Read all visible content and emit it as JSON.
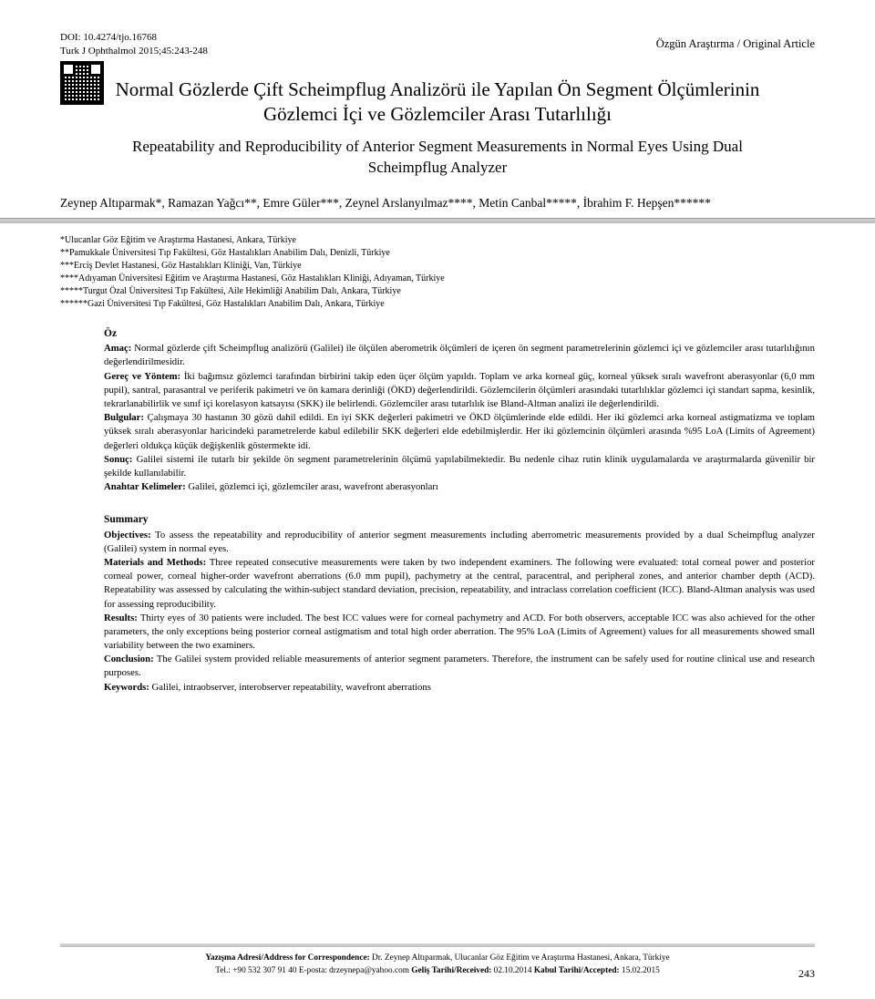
{
  "header": {
    "doi": "DOI: 10.4274/tjo.16768",
    "journal_ref": "Turk J Ophthalmol 2015;45:243-248",
    "article_type": "Özgün Araştırma / Original Article"
  },
  "title": {
    "tr": "Normal Gözlerde Çift Scheimpflug Analizörü ile Yapılan Ön Segment Ölçümlerinin Gözlemci İçi ve Gözlemciler Arası Tutarlılığı",
    "en": "Repeatability and Reproducibility of Anterior Segment Measurements in Normal Eyes Using Dual Scheimpflug Analyzer"
  },
  "authors": "Zeynep Altıparmak*, Ramazan Yağcı**, Emre Güler***, Zeynel Arslanyılmaz****, Metin Canbal*****, İbrahim F. Hepşen******",
  "affiliations": [
    "*Ulucanlar Göz Eğitim ve Araştırma Hastanesi, Ankara, Türkiye",
    "**Pamukkale Üniversitesi Tıp Fakültesi, Göz Hastalıkları Anabilim Dalı, Denizli, Türkiye",
    "***Erciş Devlet Hastanesi, Göz Hastalıkları Kliniği, Van, Türkiye",
    "****Adıyaman Üniversitesi Eğitim ve Araştırma Hastanesi, Göz Hastalıkları Kliniği, Adıyaman, Türkiye",
    "*****Turgut Özal Üniversitesi Tıp Fakültesi, Aile Hekimliği Anabilim Dalı, Ankara, Türkiye",
    "******Gazi Üniversitesi Tıp Fakültesi, Göz Hastalıkları Anabilim Dalı, Ankara, Türkiye"
  ],
  "oz": {
    "heading": "Öz",
    "amac_label": "Amaç:",
    "amac": " Normal gözlerde çift Scheimpflug analizörü (Galilei) ile ölçülen aberometrik ölçümleri de içeren ön segment parametrelerinin gözlemci içi ve gözlemciler arası tutarlılığının değerlendirilmesidir.",
    "gerec_label": "Gereç ve Yöntem:",
    "gerec": " İki bağımsız gözlemci tarafından birbirini takip eden üçer ölçüm yapıldı. Toplam ve arka korneal güç, korneal yüksek sıralı wavefront aberasyonlar (6,0 mm pupil), santral, parasantral ve periferik pakimetri ve ön kamara derinliği (ÖKD) değerlendirildi. Gözlemcilerin ölçümleri arasındaki tutarlılıklar gözlemci içi standart sapma, kesinlik, tekrarlanabilirlik ve sınıf içi korelasyon katsayısı (SKK) ile belirlendi. Gözlemciler arası tutarlılık ise Bland-Altman analizi ile değerlendirildi.",
    "bulgular_label": "Bulgular:",
    "bulgular": " Çalışmaya 30 hastanın 30 gözü dahil edildi. En iyi SKK değerleri pakimetri ve ÖKD ölçümlerinde elde edildi. Her iki gözlemci arka korneal astigmatizma ve toplam yüksek sıralı aberasyonlar haricindeki parametrelerde kabul edilebilir SKK değerleri elde edebilmişlerdir. Her iki gözlemcinin ölçümleri arasında %95 LoA (Limits of Agreement) değerleri oldukça küçük değişkenlik göstermekte idi.",
    "sonuc_label": "Sonuç:",
    "sonuc": " Galilei sistemi ile tutarlı bir şekilde ön segment parametrelerinin ölçümü yapılabilmektedir. Bu nedenle cihaz rutin klinik uygulamalarda ve araştırmalarda güvenilir bir şekilde kullanılabilir.",
    "keywords_label": "Anahtar Kelimeler:",
    "keywords": " Galilei, gözlemci içi, gözlemciler arası, wavefront aberasyonları"
  },
  "summary": {
    "heading": "Summary",
    "obj_label": "Objectives:",
    "obj": " To assess the repeatability and reproducibility of anterior segment measurements including aberrometric measurements provided by a dual Scheimpflug analyzer (Galilei) system in normal eyes.",
    "mm_label": "Materials and Methods:",
    "mm": " Three repeated consecutive measurements were taken by two independent examiners. The following were evaluated: total corneal power and posterior corneal power, corneal higher-order wavefront aberrations (6.0 mm pupil), pachymetry at the central, paracentral, and peripheral zones, and anterior chamber depth (ACD). Repeatability was assessed by calculating the within-subject standard deviation, precision, repeatability, and intraclass correlation coefficient (ICC). Bland-Altman analysis was used for assessing reproducibility.",
    "res_label": "Results:",
    "res": " Thirty eyes of 30 patients were included. The best ICC values were for corneal pachymetry and ACD. For both observers, acceptable ICC was also achieved for the other parameters, the only exceptions being posterior corneal astigmatism and total high order aberration. The 95% LoA (Limits of Agreement) values for all measurements showed small variability between the two examiners.",
    "con_label": "Conclusion:",
    "con": " The Galilei system provided reliable measurements of anterior segment parameters. Therefore, the instrument can be safely used for routine clinical use and research purposes.",
    "kw_label": "Keywords:",
    "kw": " Galilei, intraobserver, interobserver repeatability, wavefront aberrations"
  },
  "correspondence": {
    "label1": "Yazışma Adresi/Address for Correspondence:",
    "line1": " Dr. Zeynep Altıparmak, Ulucanlar Göz Eğitim ve Araştırma Hastanesi, Ankara, Türkiye",
    "line2a": "Tel.: +90 532 307 91 40 E-posta: drzeynepa@yahoo.com ",
    "label2": "Geliş Tarihi/Received:",
    "date1": " 02.10.2014 ",
    "label3": "Kabul Tarihi/Accepted:",
    "date2": " 15.02.2015"
  },
  "page_number": "243"
}
